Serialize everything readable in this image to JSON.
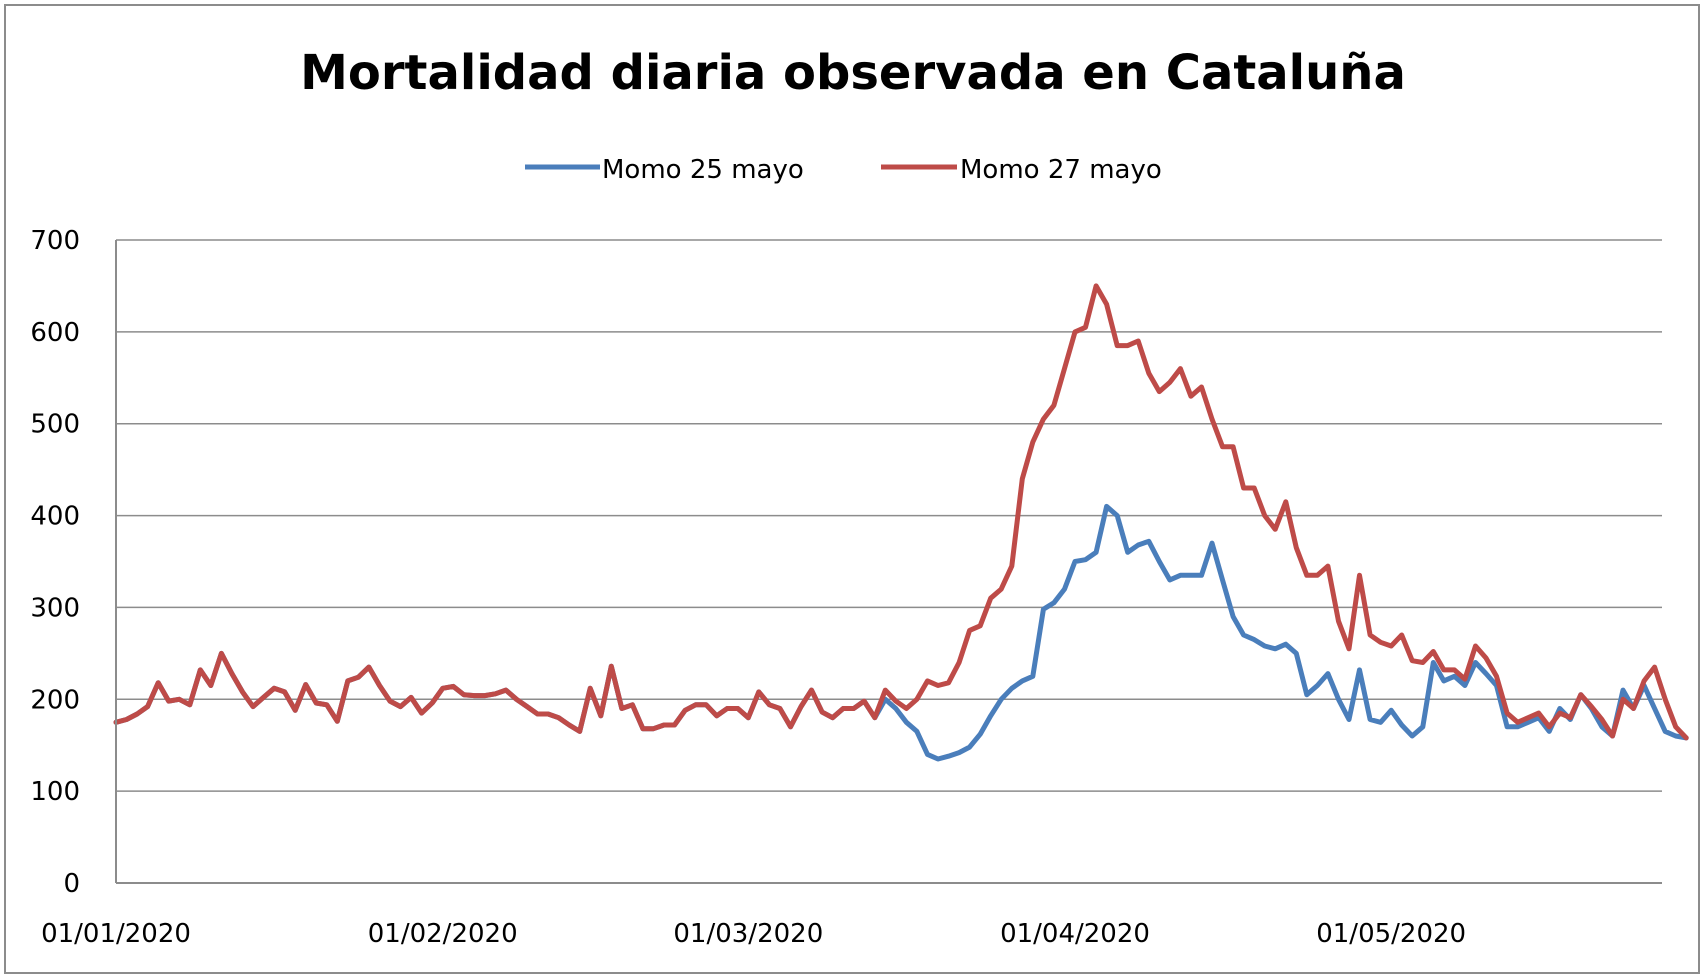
{
  "chart_data": {
    "type": "line",
    "title": "Mortalidad diaria observada en Cataluña",
    "xlabel": "",
    "ylabel": "",
    "ylim": [
      0,
      700
    ],
    "yticks": [
      "0",
      "100",
      "200",
      "300",
      "400",
      "500",
      "600",
      "700"
    ],
    "xticks": [
      "01/01/2020",
      "01/02/2020",
      "01/03/2020",
      "01/04/2020",
      "01/05/2020"
    ],
    "grid": true,
    "legend_position": "top-center",
    "start_date": "01/01/2020",
    "days": 150,
    "series": [
      {
        "name": "Momo 25 mayo",
        "color": "#4a7ebb",
        "values": [
          175,
          178,
          184,
          192,
          218,
          198,
          200,
          194,
          232,
          215,
          250,
          228,
          208,
          192,
          202,
          212,
          208,
          188,
          216,
          196,
          194,
          176,
          220,
          224,
          235,
          215,
          198,
          192,
          202,
          185,
          196,
          212,
          214,
          205,
          204,
          204,
          206,
          210,
          200,
          192,
          184,
          184,
          180,
          172,
          165,
          212,
          182,
          236,
          190,
          194,
          168,
          168,
          172,
          172,
          188,
          194,
          194,
          182,
          190,
          190,
          180,
          208,
          194,
          190,
          170,
          192,
          210,
          186,
          180,
          190,
          190,
          198,
          180,
          200,
          190,
          175,
          165,
          140,
          135,
          138,
          142,
          148,
          162,
          182,
          200,
          212,
          220,
          225,
          298,
          305,
          320,
          350,
          352,
          360,
          410,
          400,
          360,
          368,
          372,
          350,
          330,
          335,
          335,
          335,
          370,
          330,
          290,
          270,
          265,
          258,
          255,
          260,
          250,
          205,
          215,
          228,
          200,
          178,
          232,
          178,
          175,
          188,
          172,
          160,
          170,
          240,
          220,
          225,
          215,
          240,
          228,
          215,
          170,
          170,
          175,
          180,
          165,
          190,
          178,
          205,
          190,
          170,
          160,
          210,
          190,
          215,
          190,
          165,
          160,
          158
        ]
      },
      {
        "name": "Momo 27 mayo",
        "color": "#be4b48",
        "values": [
          175,
          178,
          184,
          192,
          218,
          198,
          200,
          194,
          232,
          215,
          250,
          228,
          208,
          192,
          202,
          212,
          208,
          188,
          216,
          196,
          194,
          176,
          220,
          224,
          235,
          215,
          198,
          192,
          202,
          185,
          196,
          212,
          214,
          205,
          204,
          204,
          206,
          210,
          200,
          192,
          184,
          184,
          180,
          172,
          165,
          212,
          182,
          236,
          190,
          194,
          168,
          168,
          172,
          172,
          188,
          194,
          194,
          182,
          190,
          190,
          180,
          208,
          194,
          190,
          170,
          192,
          210,
          186,
          180,
          190,
          190,
          198,
          180,
          210,
          198,
          190,
          200,
          220,
          215,
          218,
          240,
          275,
          280,
          310,
          320,
          345,
          440,
          480,
          505,
          520,
          560,
          600,
          605,
          650,
          630,
          585,
          585,
          590,
          555,
          535,
          545,
          560,
          530,
          540,
          505,
          475,
          475,
          430,
          430,
          400,
          385,
          415,
          365,
          335,
          335,
          345,
          285,
          255,
          335,
          270,
          262,
          258,
          270,
          242,
          240,
          252,
          232,
          232,
          222,
          258,
          245,
          225,
          185,
          175,
          180,
          185,
          170,
          185,
          180,
          205,
          192,
          178,
          160,
          200,
          190,
          220,
          235,
          200,
          170,
          158
        ]
      }
    ]
  }
}
